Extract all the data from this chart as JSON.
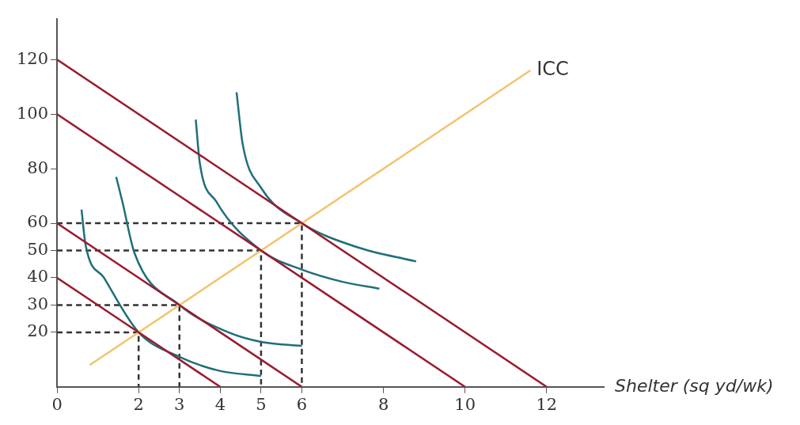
{
  "chart_data": {
    "type": "line",
    "xlabel": "Shelter (sq yd/wk)",
    "xlim": [
      0,
      13.4
    ],
    "ylim": [
      0,
      135
    ],
    "xticks": [
      0,
      2,
      3,
      4,
      5,
      6,
      8,
      10,
      12
    ],
    "yticks": [
      20,
      30,
      40,
      50,
      60,
      80,
      100,
      120
    ],
    "grid": false,
    "legend": false,
    "marker": "none",
    "series": [
      {
        "color": "#9b1b30",
        "x": [
          0,
          4
        ],
        "values": [
          40,
          0
        ]
      },
      {
        "color": "#9b1b30",
        "x": [
          0,
          6
        ],
        "values": [
          60,
          0
        ]
      },
      {
        "color": "#9b1b30",
        "x": [
          0,
          10
        ],
        "values": [
          100,
          0
        ]
      },
      {
        "color": "#9b1b30",
        "x": [
          0,
          12
        ],
        "values": [
          120,
          0
        ]
      },
      {
        "name": "ICC",
        "color": "#f2c46d",
        "x": [
          0.8,
          11.6
        ],
        "values": [
          8,
          116
        ]
      },
      {
        "color": "#1f6f7a",
        "x": [
          0.6,
          0.7,
          1.15,
          2,
          3,
          3.95,
          5
        ],
        "values": [
          65,
          52,
          40,
          20,
          11,
          6,
          4
        ]
      },
      {
        "color": "#1f6f7a",
        "x": [
          1.45,
          1.6,
          1.9,
          3,
          4.2,
          5,
          6
        ],
        "values": [
          77,
          68,
          49,
          30,
          20,
          16.5,
          15
        ]
      },
      {
        "color": "#1f6f7a",
        "x": [
          3.4,
          3.5,
          3.9,
          5,
          6,
          7,
          7.9
        ],
        "values": [
          98,
          82,
          68,
          50,
          43,
          38.5,
          36
        ]
      },
      {
        "color": "#1f6f7a",
        "x": [
          4.4,
          4.55,
          5,
          6,
          7.4,
          8.8
        ],
        "values": [
          108,
          89,
          73,
          60,
          51,
          46
        ]
      },
      {
        "color": "#333333",
        "line_style": "dashed",
        "x": [
          0,
          2,
          2
        ],
        "values": [
          20,
          20,
          0
        ]
      },
      {
        "color": "#333333",
        "line_style": "dashed",
        "x": [
          0,
          3,
          3
        ],
        "values": [
          30,
          30,
          0
        ]
      },
      {
        "color": "#333333",
        "line_style": "dashed",
        "x": [
          0,
          5,
          5
        ],
        "values": [
          50,
          50,
          0
        ]
      },
      {
        "color": "#333333",
        "line_style": "dashed",
        "x": [
          0,
          6,
          6
        ],
        "values": [
          60,
          60,
          0
        ]
      }
    ]
  }
}
